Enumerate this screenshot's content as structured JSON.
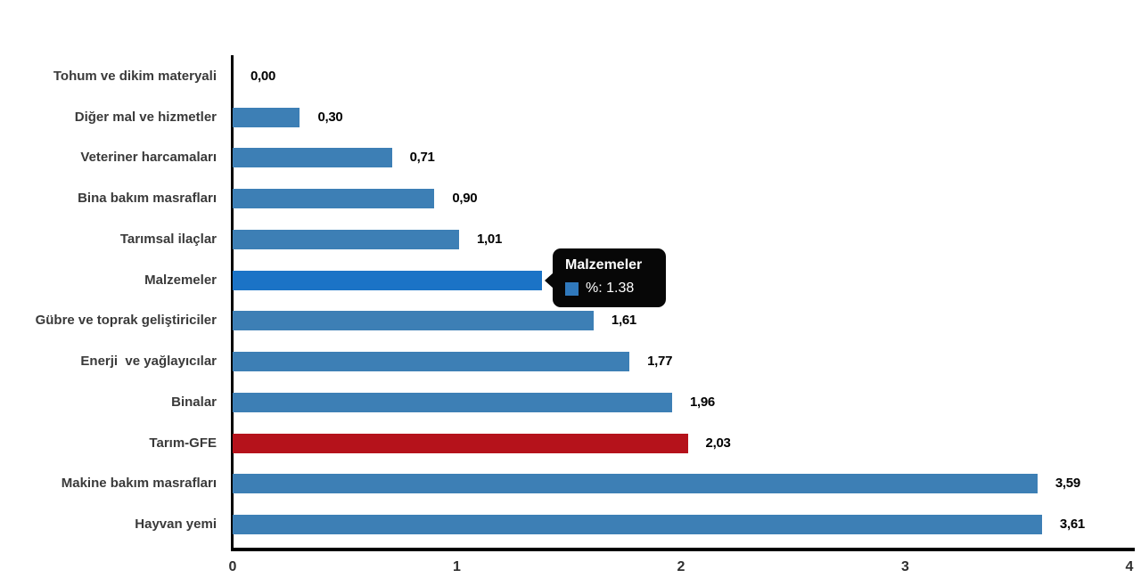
{
  "chart_data": {
    "type": "bar",
    "orientation": "horizontal",
    "title": "",
    "xlabel": "",
    "ylabel": "",
    "xlim": [
      0,
      4
    ],
    "x_ticks": [
      "0",
      "1",
      "2",
      "3",
      "4"
    ],
    "grid": false,
    "legend": false,
    "categories": [
      "Tohum ve dikim materyali",
      "Diğer mal ve hizmetler",
      "Veteriner harcamaları",
      "Bina bakım masrafları",
      "Tarımsal ilaçlar",
      "Malzemeler",
      "Gübre ve toprak geliştiriciler",
      "Enerji  ve yağlayıcılar",
      "Binalar",
      "Tarım-GFE",
      "Makine bakım masrafları",
      "Hayvan yemi"
    ],
    "values": [
      0.0,
      0.3,
      0.71,
      0.9,
      1.01,
      1.38,
      1.61,
      1.77,
      1.96,
      2.03,
      3.59,
      3.61
    ],
    "value_labels": [
      "0,00",
      "0,30",
      "0,71",
      "0,90",
      "1,01",
      "1,38",
      "1,61",
      "1,77",
      "1,96",
      "2,03",
      "3,59",
      "3,61"
    ],
    "highlighted_category": "Malzemeler",
    "emphasis_category": "Tarım-GFE",
    "colors": {
      "bar_default": "#3d7fb5",
      "bar_highlight": "#1b73c6",
      "bar_emphasis": "#b5121b"
    },
    "tooltip": {
      "title": "Malzemeler",
      "text": "%: 1.38",
      "swatch_color": "#3079bd"
    }
  }
}
